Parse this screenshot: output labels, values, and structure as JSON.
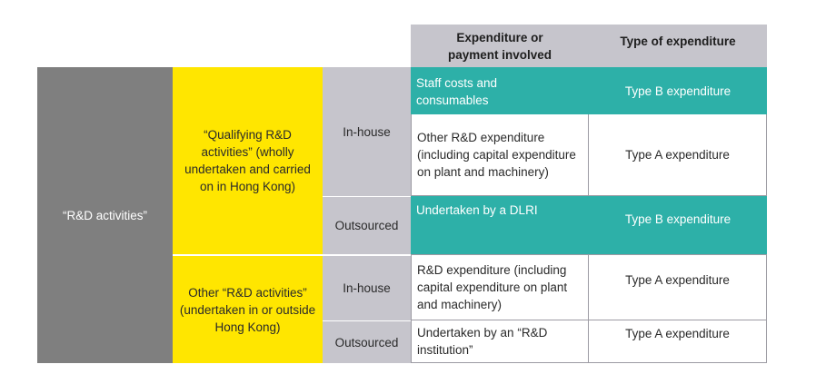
{
  "headers": {
    "expenditure": "Expenditure or payment involved",
    "type": "Type of expenditure"
  },
  "rows_label": "“R&D activities”",
  "groups": [
    {
      "label": "“Qualifying R&D activities” (wholly undertaken and carried on in Hong Kong)",
      "inhouse": "In-house",
      "outsourced": "Outsourced",
      "rows": [
        {
          "expenditure": "Staff costs and consumables",
          "type": "Type B expenditure"
        },
        {
          "expenditure": "Other R&D expenditure (including capital expenditure on plant and machinery)",
          "type": "Type A expenditure"
        },
        {
          "expenditure": "Undertaken by a DLRI",
          "type": "Type B expenditure"
        }
      ]
    },
    {
      "label": "Other “R&D activities” (undertaken in or outside Hong Kong)",
      "inhouse": "In-house",
      "outsourced": "Outsourced",
      "rows": [
        {
          "expenditure": "R&D expenditure (including capital expenditure on plant and machinery)",
          "type": "Type A expenditure"
        },
        {
          "expenditure": "Undertaken by an “R&D institution”",
          "type": "Type A expenditure"
        }
      ]
    }
  ],
  "colors": {
    "gray": "#7f7f7f",
    "yellow": "#ffe600",
    "light_gray": "#c6c5cc",
    "teal": "#2db0a8"
  }
}
